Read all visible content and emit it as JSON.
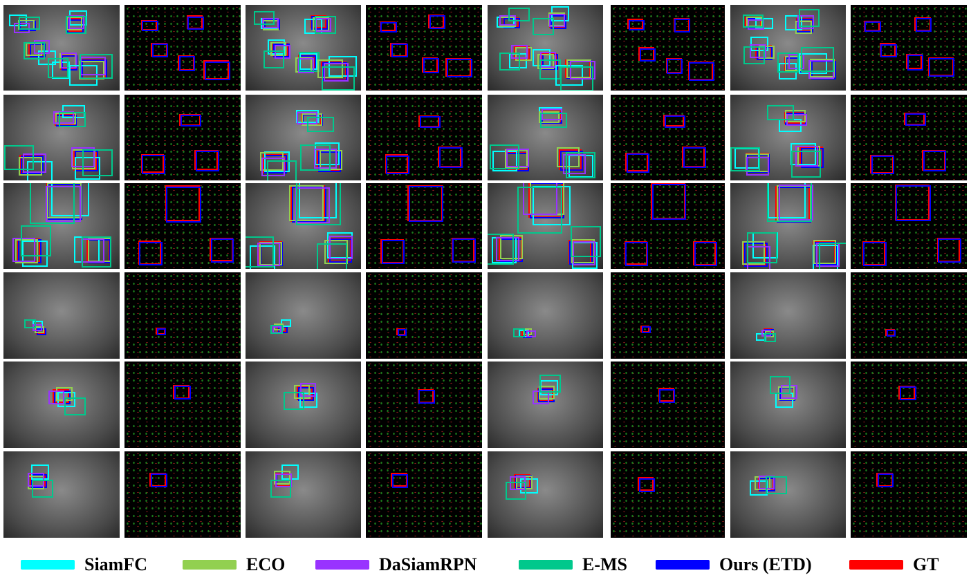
{
  "figure": {
    "rows": 6,
    "columns": 8,
    "column_types": [
      "grayscale",
      "event",
      "grayscale",
      "event",
      "grayscale",
      "event",
      "grayscale",
      "event"
    ]
  },
  "legend": [
    {
      "label": "SiamFC",
      "color": "#00FFFF"
    },
    {
      "label": "ECO",
      "color": "#92D050"
    },
    {
      "label": "DaSiamRPN",
      "color": "#9933FF"
    },
    {
      "label": "E-MS",
      "color": "#00C88C"
    },
    {
      "label": "Ours (ETD)",
      "color": "#0000FF"
    },
    {
      "label": "GT",
      "color": "#FF0000"
    }
  ]
}
